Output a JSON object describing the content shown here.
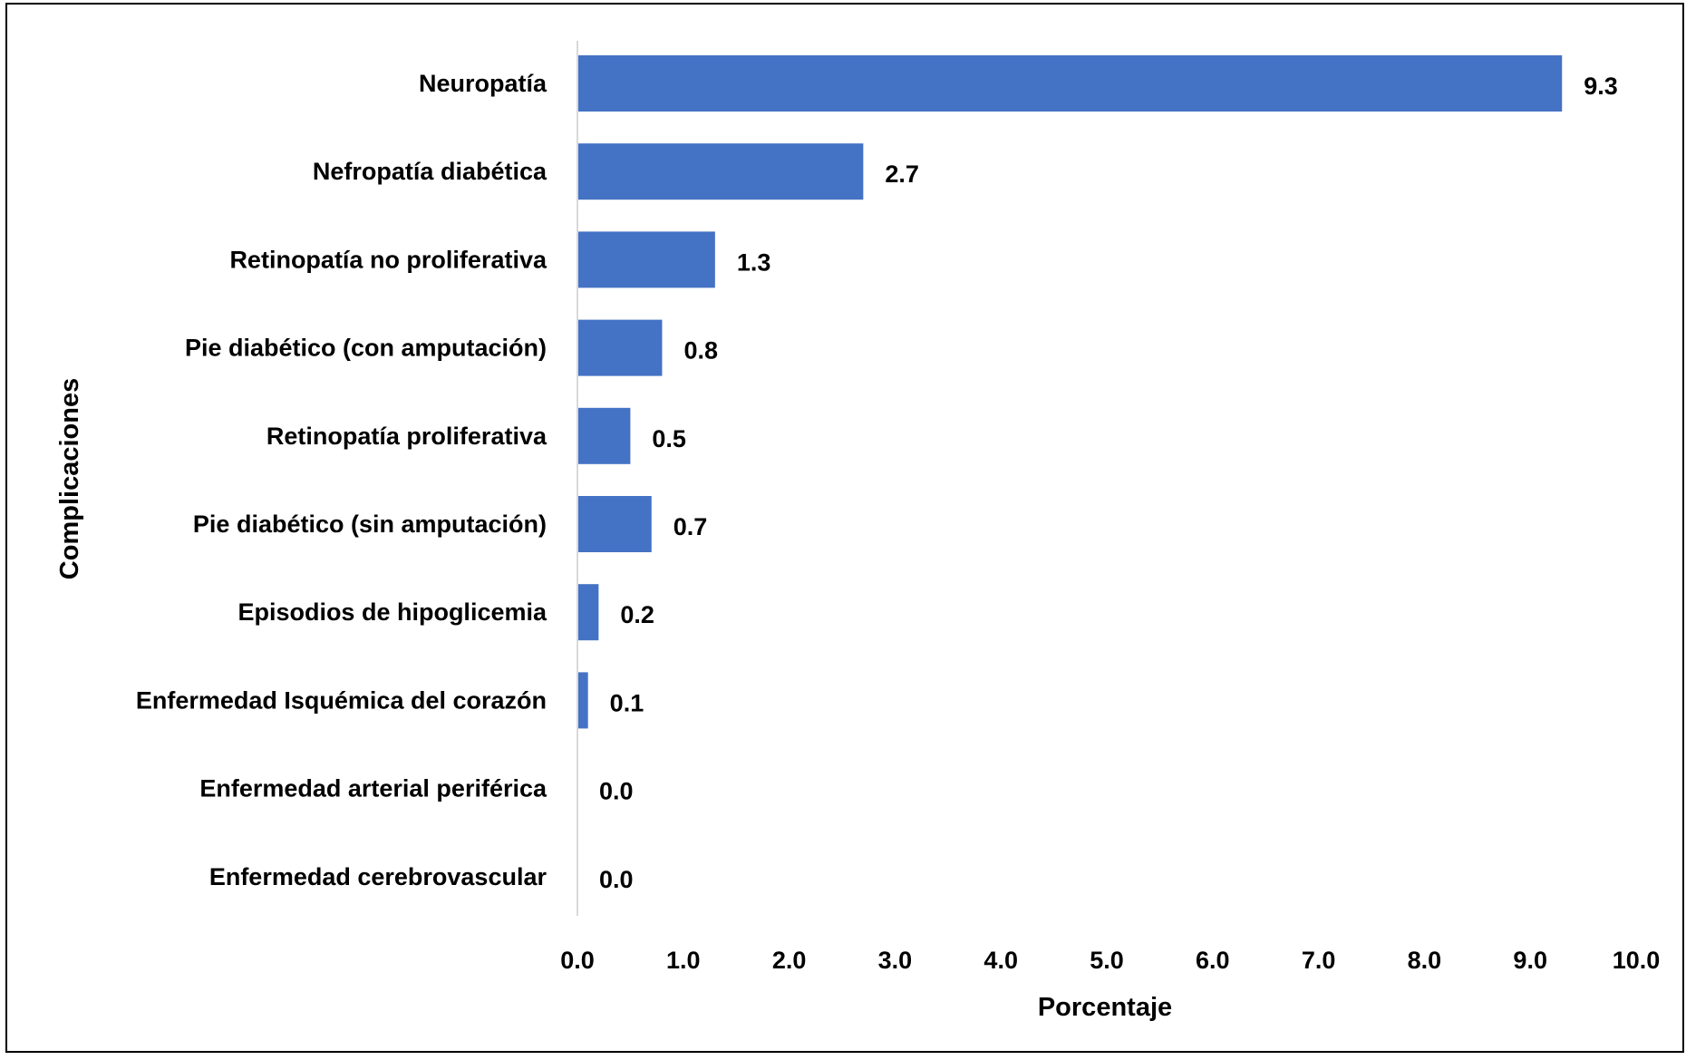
{
  "chart_data": {
    "type": "bar",
    "orientation": "horizontal",
    "categories": [
      "Neuropatía",
      "Nefropatía diabética",
      "Retinopatía no proliferativa",
      "Pie diabético (con amputación)",
      "Retinopatía proliferativa",
      "Pie diabético (sin amputación)",
      "Episodios de hipoglicemia",
      "Enfermedad Isquémica del corazón",
      "Enfermedad arterial periférica",
      "Enfermedad cerebrovascular"
    ],
    "values": [
      9.3,
      2.7,
      1.3,
      0.8,
      0.5,
      0.7,
      0.2,
      0.1,
      0.0,
      0.0
    ],
    "value_labels": [
      "9.3",
      "2.7",
      "1.3",
      "0.8",
      "0.5",
      "0.7",
      "0.2",
      "0.1",
      "0.0",
      "0.0"
    ],
    "xlabel": "Porcentaje",
    "ylabel": "Complicaciones",
    "xlim": [
      0,
      10
    ],
    "x_ticks": [
      0,
      1,
      2,
      3,
      4,
      5,
      6,
      7,
      8,
      9,
      10
    ],
    "x_tick_labels": [
      "0.0",
      "1.0",
      "2.0",
      "3.0",
      "4.0",
      "5.0",
      "6.0",
      "7.0",
      "8.0",
      "9.0",
      "10.0"
    ],
    "grid": false,
    "legend": "none",
    "colors": {
      "bar": "#4472C4",
      "axis_line": "#D9D9D9",
      "border": "#000000",
      "text": "#000000"
    }
  }
}
